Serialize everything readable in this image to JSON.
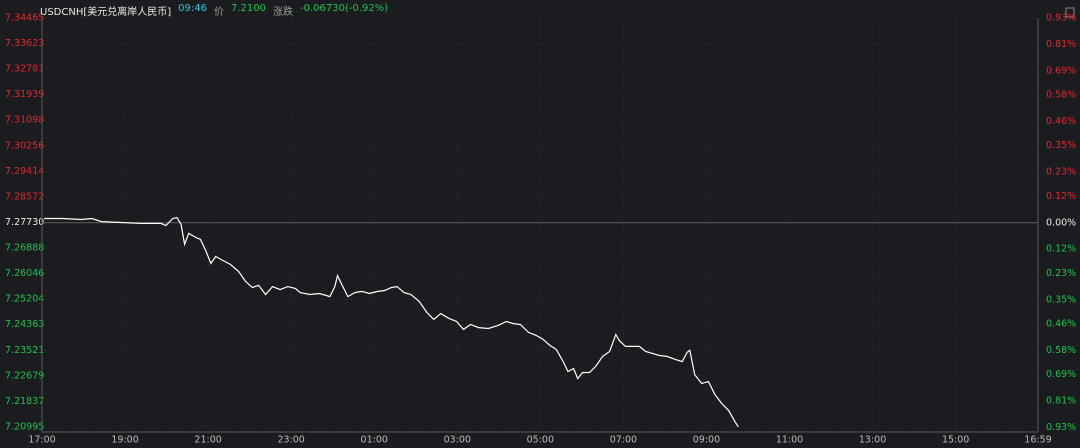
{
  "chart_data": {
    "type": "line",
    "title": "USDCNH[美元兑离岸人民币]",
    "time": "09:46",
    "price_label": "价",
    "price": "7.2100",
    "change_label": "涨跌",
    "change": "-0.06730(-0.92%)",
    "color": "#ffffff",
    "up_color": "#e0282e",
    "down_color": "#1fc24a",
    "grid": true,
    "xlim": [
      0,
      1439
    ],
    "xticks": [
      {
        "value": 0,
        "label": "17:00"
      },
      {
        "value": 120,
        "label": "19:00"
      },
      {
        "value": 240,
        "label": "21:00"
      },
      {
        "value": 360,
        "label": "23:00"
      },
      {
        "value": 480,
        "label": "01:00"
      },
      {
        "value": 600,
        "label": "03:00"
      },
      {
        "value": 720,
        "label": "05:00"
      },
      {
        "value": 840,
        "label": "07:00"
      },
      {
        "value": 960,
        "label": "09:00"
      },
      {
        "value": 1080,
        "label": "11:00"
      },
      {
        "value": 1200,
        "label": "13:00"
      },
      {
        "value": 1320,
        "label": "15:00"
      },
      {
        "value": 1439,
        "label": "16:59"
      }
    ],
    "ylim": [
      7.2083,
      7.34465
    ],
    "yticks": [
      7.34465,
      7.33623,
      7.32781,
      7.31939,
      7.31098,
      7.30256,
      7.29414,
      7.28572,
      {
        "value": 7.2773,
        "label": "7.27730"
      },
      7.26888,
      7.26046,
      7.25204,
      7.24363,
      7.23521,
      7.22679,
      7.21837,
      7.20995
    ],
    "y2lim": [
      -0.95,
      0.93
    ],
    "y2ticks": [
      {
        "value": 0.93,
        "label": "0.93%"
      },
      {
        "value": 0.81,
        "label": "0.81%"
      },
      {
        "value": 0.69,
        "label": "0.69%"
      },
      {
        "value": 0.58,
        "label": "0.58%"
      },
      {
        "value": 0.46,
        "label": "0.46%"
      },
      {
        "value": 0.35,
        "label": "0.35%"
      },
      {
        "value": 0.23,
        "label": "0.23%"
      },
      {
        "value": 0.12,
        "label": "0.12%"
      },
      {
        "value": 0,
        "label": "0.00%"
      },
      {
        "value": -0.12,
        "label": "0.12%"
      },
      {
        "value": -0.23,
        "label": "0.23%"
      },
      {
        "value": -0.35,
        "label": "0.35%"
      },
      {
        "value": -0.46,
        "label": "0.46%"
      },
      {
        "value": -0.58,
        "label": "0.58%"
      },
      {
        "value": -0.69,
        "label": "0.69%"
      },
      {
        "value": -0.81,
        "label": "0.81%"
      },
      {
        "value": -0.93,
        "label": "0.93%"
      }
    ],
    "x": [
      3,
      29,
      57,
      72,
      86,
      115,
      143,
      172,
      179,
      189,
      195,
      201,
      206,
      212,
      222,
      229,
      237,
      244,
      251,
      261,
      272,
      284,
      294,
      304,
      313,
      323,
      333,
      344,
      355,
      366,
      373,
      387,
      401,
      416,
      423,
      427,
      433,
      442,
      452,
      462,
      473,
      485,
      495,
      505,
      513,
      523,
      533,
      545,
      556,
      566,
      576,
      588,
      599,
      609,
      619,
      631,
      645,
      659,
      671,
      681,
      691,
      703,
      714,
      724,
      734,
      743,
      753,
      760,
      768,
      774,
      781,
      791,
      800,
      810,
      820,
      829,
      834,
      843,
      853,
      863,
      872,
      882,
      892,
      903,
      915,
      925,
      932,
      936,
      943,
      953,
      963,
      972,
      982,
      992,
      1001,
      1006
    ],
    "values": [
      7.2786,
      7.2786,
      7.2783,
      7.2786,
      7.2776,
      7.2773,
      7.277,
      7.277,
      7.2763,
      7.2786,
      7.2789,
      7.2766,
      7.2701,
      7.2737,
      7.2724,
      7.2717,
      7.2678,
      7.2638,
      7.2661,
      7.2648,
      7.2635,
      7.2612,
      7.2579,
      7.2559,
      7.2566,
      7.2536,
      7.2562,
      7.2552,
      7.2562,
      7.2556,
      7.2542,
      7.2536,
      7.2539,
      7.2529,
      7.2562,
      7.2598,
      7.2569,
      7.2529,
      7.2542,
      7.2546,
      7.2539,
      7.2546,
      7.2549,
      7.2559,
      7.2562,
      7.2542,
      7.2536,
      7.2513,
      7.2477,
      7.2454,
      7.2473,
      7.2457,
      7.2447,
      7.2421,
      7.2437,
      7.2427,
      7.2424,
      7.2434,
      7.2447,
      7.244,
      7.2437,
      7.2411,
      7.2401,
      7.2388,
      7.2368,
      7.2355,
      7.2315,
      7.2282,
      7.2292,
      7.2259,
      7.2279,
      7.2279,
      7.2299,
      7.2332,
      7.2348,
      7.2404,
      7.2384,
      7.2365,
      7.2365,
      7.2365,
      7.2348,
      7.2342,
      7.2335,
      7.2332,
      7.2322,
      7.2315,
      7.2345,
      7.2352,
      7.2272,
      7.2243,
      7.2249,
      7.2207,
      7.2177,
      7.2154,
      7.2118,
      7.21
    ]
  }
}
